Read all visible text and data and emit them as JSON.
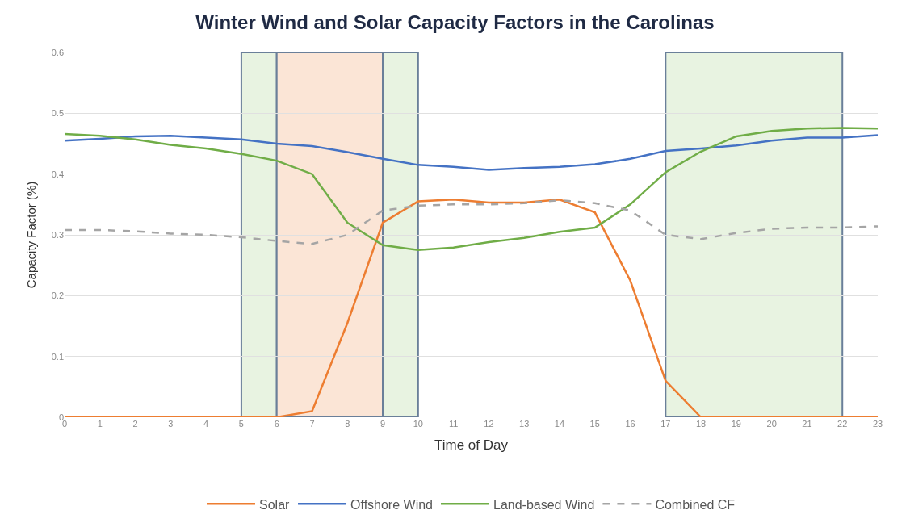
{
  "chart_data": {
    "type": "line",
    "title": "Winter Wind and Solar Capacity Factors in the Carolinas",
    "xlabel": "Time of Day",
    "ylabel": "Capacity Factor (%)",
    "x": [
      0,
      1,
      2,
      3,
      4,
      5,
      6,
      7,
      8,
      9,
      10,
      11,
      12,
      13,
      14,
      15,
      16,
      17,
      18,
      19,
      20,
      21,
      22,
      23
    ],
    "xlim": [
      0,
      23
    ],
    "xticks": [
      0,
      1,
      2,
      3,
      4,
      5,
      6,
      7,
      8,
      9,
      10,
      11,
      12,
      13,
      14,
      15,
      16,
      17,
      18,
      19,
      20,
      21,
      22,
      23
    ],
    "ylim": [
      0,
      0.6
    ],
    "yticks": [
      0,
      0.1,
      0.2,
      0.3,
      0.4,
      0.5,
      0.6
    ],
    "grid": "y",
    "legend": "bottom",
    "marker": "none",
    "series": [
      {
        "name": "Solar",
        "color": "#ed7d31",
        "line_style": "solid",
        "values": [
          0,
          0,
          0,
          0,
          0,
          0,
          0,
          0.01,
          0.155,
          0.32,
          0.355,
          0.358,
          0.353,
          0.353,
          0.358,
          0.337,
          0.225,
          0.06,
          0,
          0,
          0,
          0,
          0,
          0
        ]
      },
      {
        "name": "Offshore Wind",
        "color": "#4472c4",
        "line_style": "solid",
        "values": [
          0.455,
          0.458,
          0.462,
          0.463,
          0.46,
          0.457,
          0.45,
          0.446,
          0.436,
          0.425,
          0.415,
          0.412,
          0.407,
          0.41,
          0.412,
          0.416,
          0.425,
          0.438,
          0.442,
          0.447,
          0.455,
          0.46,
          0.46,
          0.464
        ]
      },
      {
        "name": "Land-based Wind",
        "color": "#70ad47",
        "line_style": "solid",
        "values": [
          0.466,
          0.463,
          0.457,
          0.448,
          0.442,
          0.433,
          0.422,
          0.4,
          0.32,
          0.283,
          0.275,
          0.279,
          0.288,
          0.295,
          0.305,
          0.312,
          0.35,
          0.403,
          0.437,
          0.462,
          0.471,
          0.475,
          0.476,
          0.475
        ]
      },
      {
        "name": "Combined CF",
        "color": "#a5a5a5",
        "line_style": "dashed",
        "values": [
          0.308,
          0.308,
          0.306,
          0.302,
          0.3,
          0.296,
          0.29,
          0.285,
          0.3,
          0.34,
          0.348,
          0.35,
          0.35,
          0.352,
          0.357,
          0.352,
          0.34,
          0.3,
          0.293,
          0.303,
          0.31,
          0.312,
          0.312,
          0.314
        ]
      }
    ],
    "bands": [
      {
        "axis": "x",
        "from": 5,
        "to": 6,
        "color": "#e8f3e1"
      },
      {
        "axis": "x",
        "from": 6,
        "to": 9,
        "color": "#fbe5d6"
      },
      {
        "axis": "x",
        "from": 9,
        "to": 10,
        "color": "#e8f3e1"
      },
      {
        "axis": "x",
        "from": 17,
        "to": 22,
        "color": "#e8f3e1"
      }
    ]
  }
}
